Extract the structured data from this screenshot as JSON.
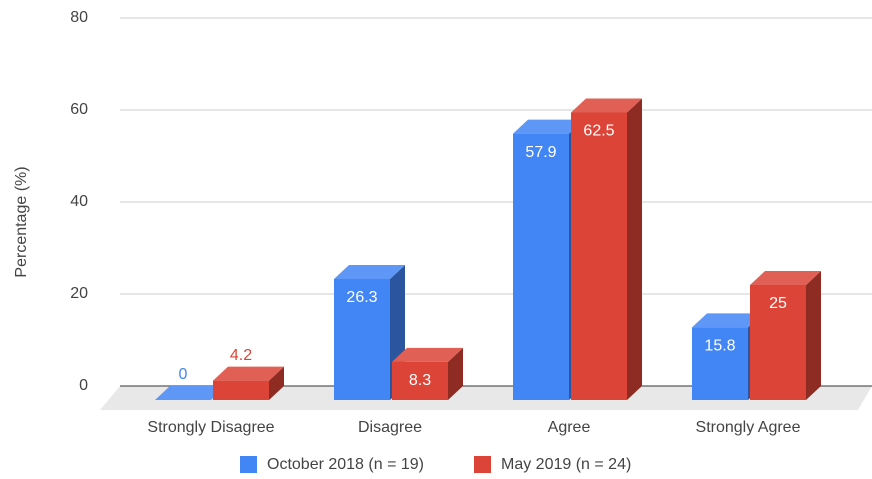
{
  "chart_data": {
    "type": "bar3d",
    "y_label": "Percentage (%)",
    "categories": [
      "Strongly Disagree",
      "Disagree",
      "Agree",
      "Strongly Agree"
    ],
    "series": [
      {
        "name": "October 2018 (n = 19)",
        "color": "#4285f4",
        "values": [
          0,
          26.3,
          57.9,
          15.8
        ]
      },
      {
        "name": "May 2019 (n = 24)",
        "color": "#db4437",
        "values": [
          4.2,
          8.3,
          62.5,
          25
        ]
      }
    ],
    "ylim": [
      0,
      80
    ],
    "yticks": [
      0,
      20,
      40,
      60,
      80
    ],
    "grid": true,
    "legend": "bottom"
  }
}
